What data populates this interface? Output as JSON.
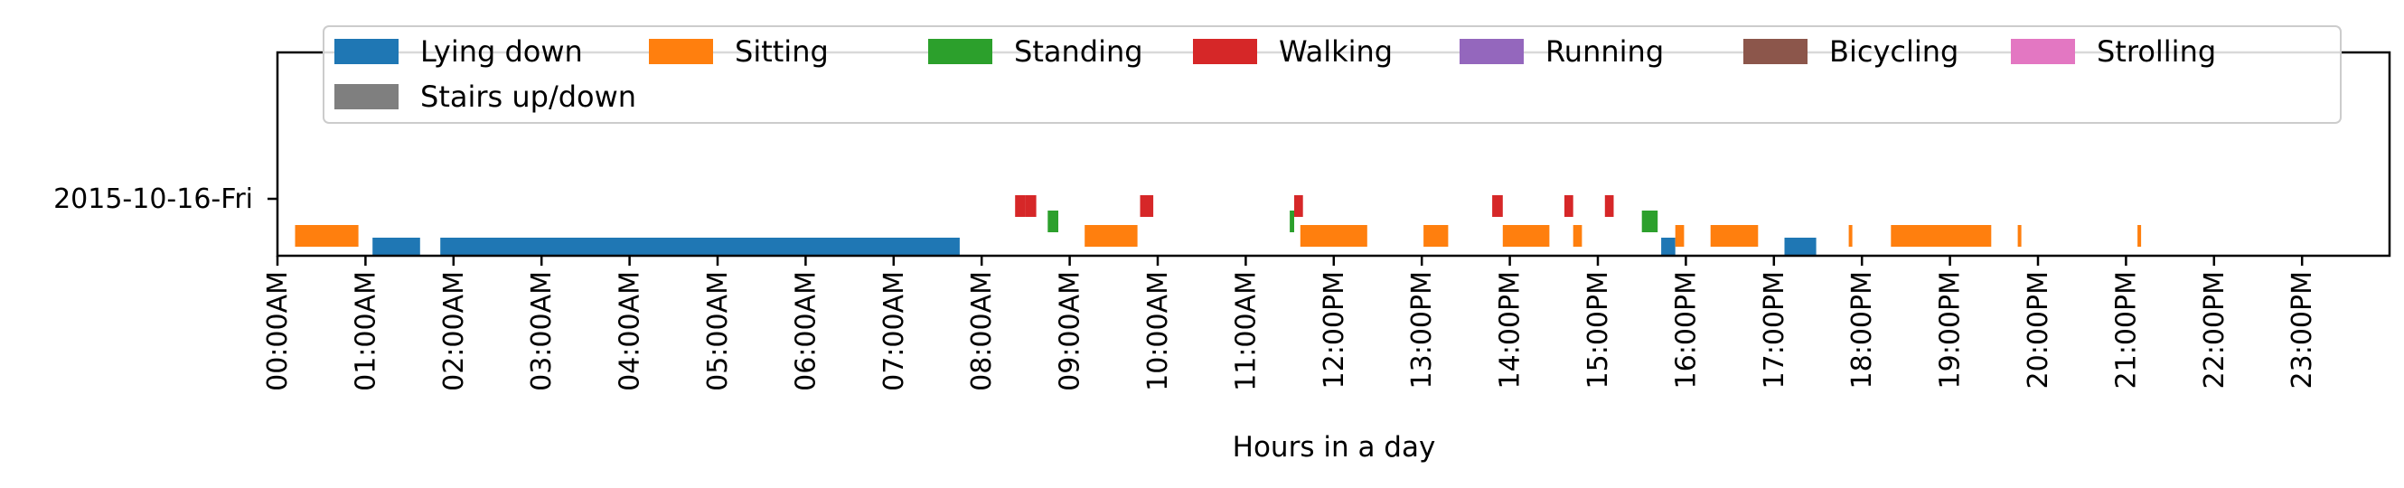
{
  "chart_data": {
    "type": "timeline",
    "title": "",
    "xlabel": "Hours in a day",
    "ylabel": "",
    "xlim_hours": [
      0,
      23.5
    ],
    "x_tick_labels": [
      "00:00AM",
      "01:00AM",
      "02:00AM",
      "03:00AM",
      "04:00AM",
      "05:00AM",
      "06:00AM",
      "07:00AM",
      "08:00AM",
      "09:00AM",
      "10:00AM",
      "11:00AM",
      "12:00PM",
      "13:00PM",
      "14:00PM",
      "15:00PM",
      "16:00PM",
      "17:00PM",
      "18:00PM",
      "19:00PM",
      "20:00PM",
      "21:00PM",
      "22:00PM",
      "23:00PM"
    ],
    "rows": [
      "2015-10-16-Fri"
    ],
    "legend_placement": "top, inside, 7 columns",
    "grid": false,
    "categories": [
      {
        "name": "Lying down",
        "color": "#1f77b4"
      },
      {
        "name": "Sitting",
        "color": "#ff7f0e"
      },
      {
        "name": "Standing",
        "color": "#2ca02c"
      },
      {
        "name": "Walking",
        "color": "#d62728"
      },
      {
        "name": "Running",
        "color": "#9467bd"
      },
      {
        "name": "Bicycling",
        "color": "#8c564b"
      },
      {
        "name": "Strolling",
        "color": "#e377c2"
      },
      {
        "name": "Stairs up/down",
        "color": "#7f7f7f"
      }
    ],
    "intervals": [
      {
        "activity": "Sitting",
        "start": 0.2,
        "end": 0.57
      },
      {
        "activity": "Sitting",
        "start": 0.57,
        "end": 0.92
      },
      {
        "activity": "Lying down",
        "start": 1.08,
        "end": 1.62
      },
      {
        "activity": "Lying down",
        "start": 1.85,
        "end": 7.75
      },
      {
        "activity": "Walking",
        "start": 8.38,
        "end": 8.5
      },
      {
        "activity": "Walking",
        "start": 8.5,
        "end": 8.62
      },
      {
        "activity": "Standing",
        "start": 8.75,
        "end": 8.87
      },
      {
        "activity": "Sitting",
        "start": 9.17,
        "end": 9.77
      },
      {
        "activity": "Walking",
        "start": 9.8,
        "end": 9.95
      },
      {
        "activity": "Standing",
        "start": 11.5,
        "end": 11.55
      },
      {
        "activity": "Walking",
        "start": 11.55,
        "end": 11.65
      },
      {
        "activity": "Sitting",
        "start": 11.62,
        "end": 12.38
      },
      {
        "activity": "Sitting",
        "start": 13.02,
        "end": 13.3
      },
      {
        "activity": "Walking",
        "start": 13.8,
        "end": 13.92
      },
      {
        "activity": "Sitting",
        "start": 13.92,
        "end": 14.45
      },
      {
        "activity": "Walking",
        "start": 14.62,
        "end": 14.72
      },
      {
        "activity": "Sitting",
        "start": 14.72,
        "end": 14.82
      },
      {
        "activity": "Walking",
        "start": 15.08,
        "end": 15.18
      },
      {
        "activity": "Standing",
        "start": 15.5,
        "end": 15.68
      },
      {
        "activity": "Lying down",
        "start": 15.72,
        "end": 15.88
      },
      {
        "activity": "Sitting",
        "start": 15.88,
        "end": 15.98
      },
      {
        "activity": "Sitting",
        "start": 16.28,
        "end": 16.82
      },
      {
        "activity": "Lying down",
        "start": 17.12,
        "end": 17.48
      },
      {
        "activity": "Sitting",
        "start": 17.85,
        "end": 17.89
      },
      {
        "activity": "Sitting",
        "start": 18.33,
        "end": 19.47
      },
      {
        "activity": "Sitting",
        "start": 19.77,
        "end": 19.81
      },
      {
        "activity": "Sitting",
        "start": 21.13,
        "end": 21.17
      }
    ]
  }
}
